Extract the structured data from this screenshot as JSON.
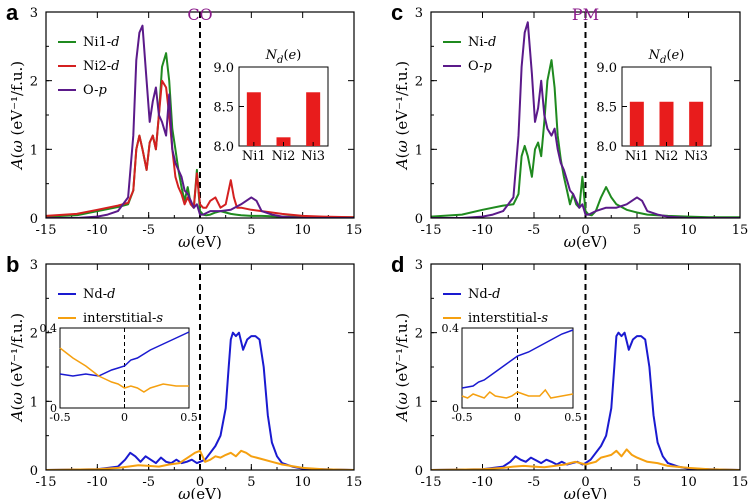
{
  "chart_data": [
    {
      "id": "a",
      "panel_label": "a",
      "type": "line",
      "title": "CO",
      "xlabel": "ω(eV)",
      "ylabel": "A(ω) (eV⁻¹/f.u.)",
      "xlim": [
        -15,
        15
      ],
      "ylim": [
        0,
        3
      ],
      "xticks": [
        "-15",
        "-10",
        "-5",
        "0",
        "5",
        "10",
        "15"
      ],
      "yticks": [
        "0",
        "1",
        "2",
        "3"
      ],
      "legend": "top-left",
      "series": [
        {
          "name": "Ni1-d",
          "color": "#1f8a1f",
          "x": [
            -15,
            -12,
            -10,
            -8,
            -7,
            -6.5,
            -6.2,
            -5.9,
            -5.6,
            -5.2,
            -4.9,
            -4.6,
            -4.3,
            -4,
            -3.7,
            -3.3,
            -3,
            -2.7,
            -2.4,
            -2.1,
            -1.8,
            -1.5,
            -1.2,
            -0.9,
            -0.6,
            -0.3,
            0,
            0.3,
            0.6,
            1,
            1.5,
            2,
            2.5,
            3,
            3.5,
            4,
            5,
            6,
            8,
            10,
            12,
            15
          ],
          "y": [
            0.02,
            0.04,
            0.1,
            0.16,
            0.2,
            0.4,
            1.0,
            1.2,
            1.0,
            0.7,
            1.1,
            1.2,
            1.0,
            1.5,
            2.2,
            2.4,
            2.0,
            1.3,
            1.0,
            0.7,
            0.45,
            0.25,
            0.45,
            0.2,
            0.15,
            0.7,
            0.1,
            0.05,
            0.04,
            0.05,
            0.08,
            0.1,
            0.08,
            0.06,
            0.05,
            0.04,
            0.03,
            0.03,
            0.02,
            0.02,
            0.01,
            0.01
          ]
        },
        {
          "name": "Ni2-d",
          "color": "#d42020",
          "x": [
            -15,
            -12,
            -10,
            -8,
            -7,
            -6.5,
            -6.2,
            -5.9,
            -5.6,
            -5.2,
            -4.9,
            -4.6,
            -4.3,
            -4,
            -3.7,
            -3.3,
            -3,
            -2.7,
            -2.4,
            -2.1,
            -1.8,
            -1.5,
            -1.2,
            -0.9,
            -0.6,
            -0.3,
            0,
            0.3,
            0.6,
            1,
            1.5,
            2,
            2.5,
            3,
            3.3,
            3.6,
            4,
            5,
            6,
            8,
            10,
            12,
            15
          ],
          "y": [
            0.03,
            0.06,
            0.12,
            0.18,
            0.22,
            0.4,
            1.0,
            1.2,
            1.0,
            0.7,
            1.1,
            1.2,
            1.0,
            1.5,
            2.0,
            1.9,
            1.5,
            1.0,
            0.6,
            0.45,
            0.35,
            0.2,
            0.3,
            0.2,
            0.15,
            0.65,
            0.2,
            0.15,
            0.15,
            0.25,
            0.3,
            0.15,
            0.2,
            0.55,
            0.3,
            0.15,
            0.15,
            0.12,
            0.1,
            0.06,
            0.03,
            0.02,
            0.01
          ]
        },
        {
          "name": "O-p",
          "color": "#5b1a8a",
          "x": [
            -15,
            -12,
            -10,
            -9,
            -8,
            -7,
            -6.5,
            -6.2,
            -5.9,
            -5.6,
            -5.2,
            -4.9,
            -4.6,
            -4.3,
            -4,
            -3.7,
            -3.3,
            -3,
            -2.7,
            -2.4,
            -2.1,
            -1.8,
            -1.5,
            -1.2,
            -0.9,
            -0.6,
            -0.3,
            0,
            0.3,
            1,
            2,
            3,
            4,
            5,
            5.5,
            6,
            7,
            8,
            10,
            12,
            15
          ],
          "y": [
            0,
            0,
            0.02,
            0.05,
            0.1,
            0.3,
            1.2,
            2.3,
            2.7,
            2.8,
            2.0,
            1.4,
            1.7,
            1.9,
            1.5,
            1.4,
            1.2,
            1.8,
            1.0,
            0.8,
            0.7,
            0.6,
            0.4,
            0.35,
            0.25,
            0.15,
            0.2,
            0.05,
            0.05,
            0.1,
            0.1,
            0.12,
            0.2,
            0.3,
            0.25,
            0.1,
            0.05,
            0.02,
            0,
            0,
            0
          ]
        }
      ],
      "inset": {
        "type": "bar",
        "title": "N_d(e)",
        "categories": [
          "Ni1",
          "Ni2",
          "Ni3"
        ],
        "values": [
          8.68,
          8.11,
          8.68
        ],
        "ylim": [
          8.0,
          9.0
        ],
        "yticks": [
          "8.0",
          "8.5",
          "9.0"
        ],
        "color": "#e81c1c"
      }
    },
    {
      "id": "c",
      "panel_label": "c",
      "type": "line",
      "title": "PM",
      "xlabel": "ω(eV)",
      "ylabel": "A(ω) (eV⁻¹/f.u.)",
      "xlim": [
        -15,
        15
      ],
      "ylim": [
        0,
        3
      ],
      "xticks": [
        "-15",
        "-10",
        "-5",
        "0",
        "5",
        "10",
        "15"
      ],
      "yticks": [
        "0",
        "1",
        "2",
        "3"
      ],
      "legend": "top-left",
      "series": [
        {
          "name": "Ni-d",
          "color": "#1f8a1f",
          "x": [
            -15,
            -12,
            -10,
            -8,
            -7,
            -6.5,
            -6.2,
            -5.9,
            -5.6,
            -5.2,
            -4.9,
            -4.6,
            -4.3,
            -4,
            -3.7,
            -3.3,
            -3,
            -2.7,
            -2.4,
            -2.1,
            -1.8,
            -1.5,
            -1.2,
            -0.9,
            -0.6,
            -0.3,
            0,
            0.3,
            0.6,
            1,
            1.5,
            2,
            2.5,
            3,
            4,
            5,
            6,
            8,
            10,
            12,
            15
          ],
          "y": [
            0.02,
            0.05,
            0.12,
            0.18,
            0.2,
            0.35,
            0.9,
            1.05,
            0.9,
            0.6,
            1.0,
            1.1,
            0.9,
            1.4,
            2.0,
            2.3,
            1.9,
            1.2,
            0.85,
            0.6,
            0.4,
            0.2,
            0.35,
            0.2,
            0.15,
            0.6,
            0.1,
            0.05,
            0.04,
            0.1,
            0.3,
            0.45,
            0.3,
            0.2,
            0.12,
            0.08,
            0.05,
            0.03,
            0.02,
            0.01,
            0.01
          ]
        },
        {
          "name": "O-p",
          "color": "#5b1a8a",
          "x": [
            -15,
            -12,
            -10,
            -9,
            -8,
            -7,
            -6.5,
            -6.2,
            -5.9,
            -5.6,
            -5.2,
            -4.9,
            -4.6,
            -4.3,
            -4,
            -3.7,
            -3.3,
            -3,
            -2.7,
            -2.4,
            -2.1,
            -1.8,
            -1.5,
            -1.2,
            -0.9,
            -0.6,
            -0.3,
            0,
            0.3,
            1,
            2,
            3,
            4,
            5,
            5.5,
            6,
            7,
            8,
            10,
            12,
            15
          ],
          "y": [
            0,
            0,
            0.02,
            0.05,
            0.1,
            0.3,
            1.2,
            2.2,
            2.7,
            2.85,
            2.1,
            1.4,
            1.6,
            2.0,
            1.5,
            1.3,
            1.2,
            1.3,
            1.0,
            0.8,
            0.7,
            0.55,
            0.4,
            0.35,
            0.25,
            0.15,
            0.2,
            0.05,
            0.05,
            0.1,
            0.15,
            0.15,
            0.2,
            0.3,
            0.25,
            0.1,
            0.05,
            0.02,
            0,
            0,
            0
          ]
        }
      ],
      "inset": {
        "type": "bar",
        "title": "N_d(e)",
        "categories": [
          "Ni1",
          "Ni2",
          "Ni3"
        ],
        "values": [
          8.56,
          8.56,
          8.56
        ],
        "ylim": [
          8.0,
          9.0
        ],
        "yticks": [
          "8.0",
          "8.5",
          "9.0"
        ],
        "color": "#e81c1c"
      }
    },
    {
      "id": "b",
      "panel_label": "b",
      "type": "line",
      "title": "",
      "xlabel": "ω(eV)",
      "ylabel": "A(ω) (eV⁻¹/f.u.)",
      "xlim": [
        -15,
        15
      ],
      "ylim": [
        0,
        3
      ],
      "xticks": [
        "-15",
        "-10",
        "-5",
        "0",
        "5",
        "10",
        "15"
      ],
      "yticks": [
        "0",
        "1",
        "2",
        "3"
      ],
      "legend": "top-left",
      "series": [
        {
          "name": "Nd-d",
          "color": "#1a1ad0",
          "x": [
            -15,
            -10,
            -8,
            -7.3,
            -6.8,
            -6.3,
            -5.8,
            -5.3,
            -4.8,
            -4.3,
            -3.8,
            -3.3,
            -2.8,
            -2.3,
            -1.8,
            -1.3,
            -0.8,
            -0.3,
            0,
            0.5,
            1,
            1.5,
            2,
            2.5,
            2.8,
            3,
            3.2,
            3.5,
            3.8,
            4.2,
            4.6,
            5,
            5.4,
            5.8,
            6.2,
            6.6,
            7,
            7.5,
            8,
            9,
            10,
            12,
            15
          ],
          "y": [
            0,
            0.01,
            0.05,
            0.15,
            0.25,
            0.2,
            0.12,
            0.2,
            0.15,
            0.1,
            0.18,
            0.12,
            0.1,
            0.15,
            0.1,
            0.12,
            0.15,
            0.1,
            0.12,
            0.15,
            0.25,
            0.35,
            0.5,
            0.9,
            1.5,
            1.9,
            2.0,
            1.95,
            2.0,
            1.75,
            1.9,
            1.95,
            1.95,
            1.9,
            1.5,
            0.8,
            0.4,
            0.2,
            0.1,
            0.05,
            0.02,
            0.01,
            0
          ]
        },
        {
          "name": "interstitial-s",
          "color": "#f5a010",
          "x": [
            -15,
            -10,
            -8,
            -7,
            -6,
            -5,
            -4,
            -3,
            -2,
            -1.5,
            -1,
            -0.5,
            0,
            0.5,
            1,
            1.5,
            2,
            2.5,
            3,
            3.5,
            4,
            4.5,
            5,
            5.5,
            6,
            7,
            8,
            10,
            12,
            15
          ],
          "y": [
            0,
            0.01,
            0.03,
            0.05,
            0.07,
            0.06,
            0.05,
            0.08,
            0.1,
            0.15,
            0.2,
            0.25,
            0.28,
            0.12,
            0.15,
            0.2,
            0.18,
            0.22,
            0.25,
            0.2,
            0.28,
            0.25,
            0.2,
            0.18,
            0.16,
            0.12,
            0.08,
            0.03,
            0.01,
            0
          ]
        }
      ],
      "inset": {
        "type": "line",
        "xlim": [
          -0.5,
          0.5
        ],
        "ylim": [
          0,
          0.4
        ],
        "xticks": [
          "-0.5",
          "0",
          "0.5"
        ],
        "yticks": [
          "0",
          "0.4"
        ],
        "series": [
          {
            "name": "Nd-d",
            "color": "#1a1ad0",
            "x": [
              -0.5,
              -0.4,
              -0.3,
              -0.2,
              -0.1,
              -0.05,
              0,
              0.05,
              0.1,
              0.2,
              0.3,
              0.4,
              0.5
            ],
            "y": [
              0.17,
              0.16,
              0.17,
              0.16,
              0.19,
              0.2,
              0.21,
              0.24,
              0.25,
              0.29,
              0.32,
              0.35,
              0.38
            ]
          },
          {
            "name": "interstitial-s",
            "color": "#f5a010",
            "x": [
              -0.5,
              -0.4,
              -0.3,
              -0.2,
              -0.1,
              -0.05,
              0,
              0.05,
              0.1,
              0.15,
              0.2,
              0.3,
              0.4,
              0.5
            ],
            "y": [
              0.3,
              0.25,
              0.21,
              0.16,
              0.13,
              0.12,
              0.1,
              0.11,
              0.1,
              0.08,
              0.1,
              0.12,
              0.11,
              0.11
            ]
          }
        ]
      }
    },
    {
      "id": "d",
      "panel_label": "d",
      "type": "line",
      "title": "",
      "xlabel": "ω(eV)",
      "ylabel": "A(ω) (eV⁻¹/f.u.)",
      "xlim": [
        -15,
        15
      ],
      "ylim": [
        0,
        3
      ],
      "xticks": [
        "-15",
        "-10",
        "-5",
        "0",
        "5",
        "10",
        "15"
      ],
      "yticks": [
        "0",
        "1",
        "2",
        "3"
      ],
      "legend": "top-left",
      "series": [
        {
          "name": "Nd-d",
          "color": "#1a1ad0",
          "x": [
            -15,
            -10,
            -8,
            -7.3,
            -6.8,
            -6.3,
            -5.8,
            -5.3,
            -4.8,
            -4.3,
            -3.8,
            -3.3,
            -2.8,
            -2.3,
            -1.8,
            -1.3,
            -0.8,
            -0.3,
            0,
            0.5,
            1,
            1.5,
            2,
            2.5,
            2.8,
            3,
            3.2,
            3.5,
            3.8,
            4.2,
            4.6,
            5,
            5.4,
            5.8,
            6.2,
            6.6,
            7,
            7.5,
            8,
            9,
            10,
            12,
            15
          ],
          "y": [
            0,
            0.01,
            0.05,
            0.12,
            0.2,
            0.15,
            0.12,
            0.18,
            0.14,
            0.1,
            0.15,
            0.12,
            0.08,
            0.12,
            0.08,
            0.1,
            0.12,
            0.08,
            0.1,
            0.15,
            0.25,
            0.35,
            0.5,
            0.9,
            1.5,
            1.95,
            2.0,
            1.95,
            2.0,
            1.75,
            1.9,
            1.95,
            1.95,
            1.9,
            1.5,
            0.8,
            0.4,
            0.2,
            0.1,
            0.05,
            0.02,
            0.01,
            0
          ]
        },
        {
          "name": "interstitial-s",
          "color": "#f5a010",
          "x": [
            -15,
            -10,
            -8,
            -7,
            -6,
            -5,
            -4,
            -3,
            -2,
            -1.5,
            -1,
            -0.5,
            0,
            0.5,
            1,
            1.5,
            2,
            2.5,
            3,
            3.5,
            4,
            4.5,
            5,
            5.5,
            6,
            7,
            8,
            10,
            12,
            15
          ],
          "y": [
            0,
            0.01,
            0.03,
            0.05,
            0.06,
            0.05,
            0.04,
            0.06,
            0.08,
            0.1,
            0.12,
            0.1,
            0.08,
            0.1,
            0.12,
            0.18,
            0.2,
            0.22,
            0.28,
            0.2,
            0.3,
            0.22,
            0.18,
            0.15,
            0.12,
            0.1,
            0.06,
            0.03,
            0.01,
            0
          ]
        }
      ],
      "inset": {
        "type": "line",
        "xlim": [
          -0.5,
          0.5
        ],
        "ylim": [
          0,
          0.4
        ],
        "xticks": [
          "-0.5",
          "0",
          "0.5"
        ],
        "yticks": [
          "0",
          "0.4"
        ],
        "series": [
          {
            "name": "Nd-d",
            "color": "#1a1ad0",
            "x": [
              -0.5,
              -0.4,
              -0.35,
              -0.3,
              -0.2,
              -0.1,
              0,
              0.1,
              0.2,
              0.3,
              0.4,
              0.5
            ],
            "y": [
              0.1,
              0.11,
              0.13,
              0.14,
              0.18,
              0.22,
              0.26,
              0.28,
              0.31,
              0.34,
              0.37,
              0.39
            ]
          },
          {
            "name": "interstitial-s",
            "color": "#f5a010",
            "x": [
              -0.5,
              -0.45,
              -0.4,
              -0.3,
              -0.25,
              -0.2,
              -0.1,
              -0.05,
              0,
              0.05,
              0.1,
              0.2,
              0.25,
              0.3,
              0.4,
              0.5
            ],
            "y": [
              0.06,
              0.05,
              0.07,
              0.05,
              0.08,
              0.06,
              0.05,
              0.06,
              0.08,
              0.07,
              0.06,
              0.06,
              0.09,
              0.05,
              0.06,
              0.07
            ]
          }
        ]
      }
    }
  ]
}
